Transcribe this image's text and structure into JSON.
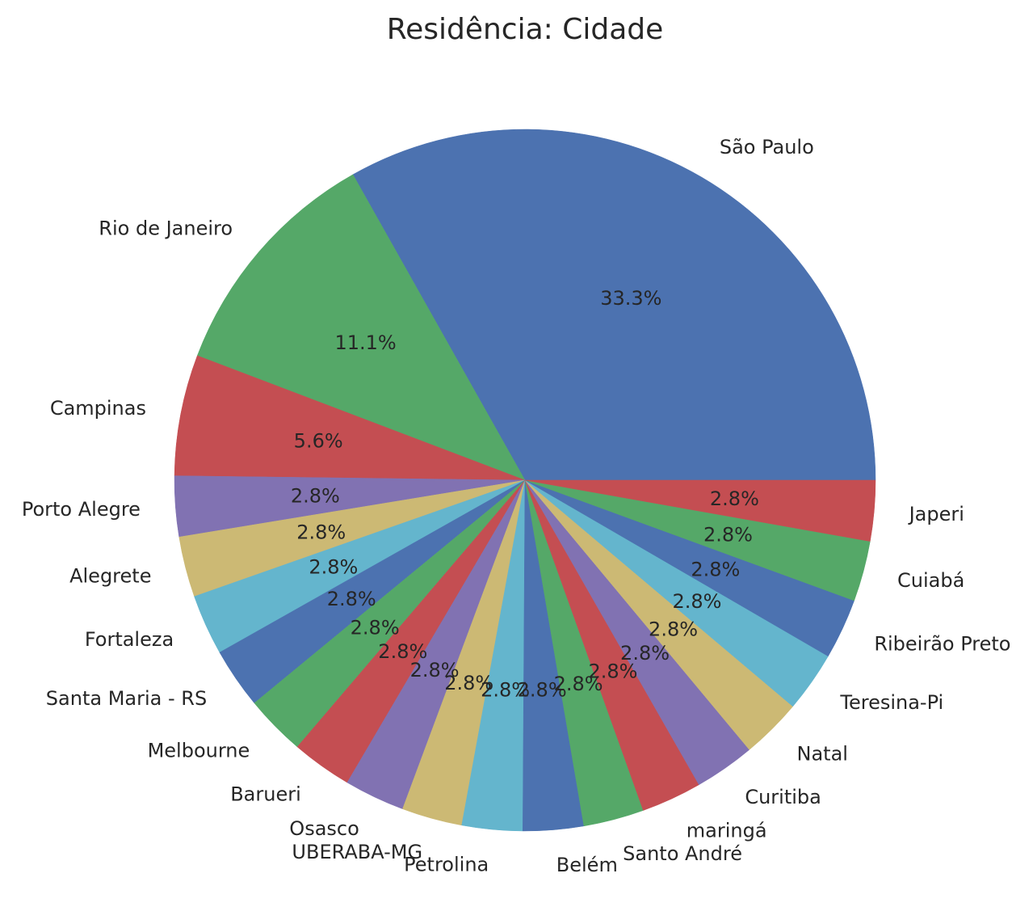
{
  "chart_data": {
    "type": "pie",
    "title": "Residência: Cidade",
    "slices": [
      {
        "label": "São Paulo",
        "value": 33.3,
        "pct_label": "33.3%",
        "color": "#4c72b0"
      },
      {
        "label": "Rio de Janeiro",
        "value": 11.1,
        "pct_label": "11.1%",
        "color": "#55a868"
      },
      {
        "label": "Campinas",
        "value": 5.6,
        "pct_label": "5.6%",
        "color": "#c44e52"
      },
      {
        "label": "Porto Alegre",
        "value": 2.8,
        "pct_label": "2.8%",
        "color": "#8172b2"
      },
      {
        "label": "Alegrete",
        "value": 2.8,
        "pct_label": "2.8%",
        "color": "#ccb974"
      },
      {
        "label": "Fortaleza",
        "value": 2.8,
        "pct_label": "2.8%",
        "color": "#64b5cd"
      },
      {
        "label": "Santa Maria - RS",
        "value": 2.8,
        "pct_label": "2.8%",
        "color": "#4c72b0"
      },
      {
        "label": "Melbourne",
        "value": 2.8,
        "pct_label": "2.8%",
        "color": "#55a868"
      },
      {
        "label": "Barueri",
        "value": 2.8,
        "pct_label": "2.8%",
        "color": "#c44e52"
      },
      {
        "label": "Osasco",
        "value": 2.8,
        "pct_label": "2.8%",
        "color": "#8172b2"
      },
      {
        "label": "UBERABA-MG",
        "value": 2.8,
        "pct_label": "2.8%",
        "color": "#ccb974"
      },
      {
        "label": "Petrolina",
        "value": 2.8,
        "pct_label": "2.8%",
        "color": "#64b5cd"
      },
      {
        "label": "Belém",
        "value": 2.8,
        "pct_label": "2.8%",
        "color": "#4c72b0"
      },
      {
        "label": "Santo André",
        "value": 2.8,
        "pct_label": "2.8%",
        "color": "#55a868"
      },
      {
        "label": "maringá",
        "value": 2.8,
        "pct_label": "2.8%",
        "color": "#c44e52"
      },
      {
        "label": "Curitiba",
        "value": 2.8,
        "pct_label": "2.8%",
        "color": "#8172b2"
      },
      {
        "label": "Natal",
        "value": 2.8,
        "pct_label": "2.8%",
        "color": "#ccb974"
      },
      {
        "label": "Teresina-Pi",
        "value": 2.8,
        "pct_label": "2.8%",
        "color": "#64b5cd"
      },
      {
        "label": "Ribeirão Preto",
        "value": 2.8,
        "pct_label": "2.8%",
        "color": "#4c72b0"
      },
      {
        "label": "Cuiabá",
        "value": 2.8,
        "pct_label": "2.8%",
        "color": "#55a868"
      },
      {
        "label": "Japeri",
        "value": 2.8,
        "pct_label": "2.8%",
        "color": "#c44e52"
      }
    ]
  }
}
